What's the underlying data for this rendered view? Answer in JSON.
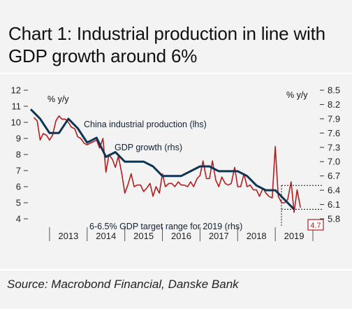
{
  "title": "Chart 1: Industrial production in line with GDP growth around 6%",
  "source": "Source: Macrobond Financial, Danske Bank",
  "chart_data": {
    "type": "line",
    "y_left": {
      "label": "% y/y",
      "ticks": [
        "12",
        "11",
        "10",
        "9",
        "8",
        "7",
        "6",
        "5",
        "4"
      ],
      "range": [
        4,
        12
      ]
    },
    "y_right": {
      "label": "% y/y",
      "ticks": [
        "8.5",
        "8.2",
        "7.9",
        "7.6",
        "7.3",
        "7.0",
        "6.7",
        "6.4",
        "6.1",
        "5.8"
      ],
      "range": [
        5.8,
        8.5
      ]
    },
    "x_ticks": [
      "2013",
      "2014",
      "2015",
      "2016",
      "2017",
      "2018",
      "2019"
    ],
    "x_range": [
      2012.5,
      2020.0
    ],
    "annotations": {
      "ip_label": "China industrial production (lhs)",
      "gdp_label": "GDP growth (rhs)",
      "target_label": "6-6.5% GDP target range for 2019 (rhs)",
      "last_value": "4.7"
    },
    "target_range_rhs": [
      6.0,
      6.5
    ],
    "colors": {
      "industrial_production": "#b71c1c",
      "gdp": "#0f3554",
      "last_value_box": "#b71c1c"
    },
    "series": [
      {
        "name": "China industrial production (lhs)",
        "axis": "left",
        "points": [
          [
            2012.58,
            10.3
          ],
          [
            2012.67,
            10.1
          ],
          [
            2012.75,
            8.9
          ],
          [
            2012.83,
            9.3
          ],
          [
            2012.92,
            9.2
          ],
          [
            2013.0,
            8.9
          ],
          [
            2013.08,
            9.2
          ],
          [
            2013.17,
            10.1
          ],
          [
            2013.25,
            10.4
          ],
          [
            2013.33,
            10.2
          ],
          [
            2013.42,
            10.2
          ],
          [
            2013.5,
            10.0
          ],
          [
            2013.58,
            9.7
          ],
          [
            2013.67,
            9.6
          ],
          [
            2013.75,
            9.1
          ],
          [
            2013.83,
            9.0
          ],
          [
            2013.92,
            8.7
          ],
          [
            2014.0,
            8.6
          ],
          [
            2014.08,
            8.7
          ],
          [
            2014.17,
            8.8
          ],
          [
            2014.25,
            8.9
          ],
          [
            2014.33,
            8.4
          ],
          [
            2014.42,
            9.0
          ],
          [
            2014.5,
            6.9
          ],
          [
            2014.58,
            8.0
          ],
          [
            2014.67,
            7.7
          ],
          [
            2014.75,
            7.2
          ],
          [
            2014.83,
            7.9
          ],
          [
            2014.92,
            6.8
          ],
          [
            2015.0,
            5.6
          ],
          [
            2015.08,
            6.1
          ],
          [
            2015.17,
            6.8
          ],
          [
            2015.25,
            6.0
          ],
          [
            2015.33,
            6.1
          ],
          [
            2015.42,
            6.1
          ],
          [
            2015.5,
            5.7
          ],
          [
            2015.58,
            5.9
          ],
          [
            2015.67,
            6.2
          ],
          [
            2015.75,
            5.4
          ],
          [
            2015.83,
            6.0
          ],
          [
            2015.92,
            5.6
          ],
          [
            2016.0,
            6.8
          ],
          [
            2016.08,
            6.0
          ],
          [
            2016.17,
            6.2
          ],
          [
            2016.25,
            6.2
          ],
          [
            2016.33,
            6.0
          ],
          [
            2016.42,
            6.3
          ],
          [
            2016.5,
            6.1
          ],
          [
            2016.58,
            6.1
          ],
          [
            2016.67,
            6.0
          ],
          [
            2016.75,
            6.3
          ],
          [
            2016.83,
            6.0
          ],
          [
            2016.92,
            6.5
          ],
          [
            2017.0,
            6.7
          ],
          [
            2017.08,
            7.6
          ],
          [
            2017.17,
            6.5
          ],
          [
            2017.25,
            6.5
          ],
          [
            2017.33,
            7.6
          ],
          [
            2017.42,
            6.4
          ],
          [
            2017.5,
            6.0
          ],
          [
            2017.58,
            6.6
          ],
          [
            2017.67,
            6.2
          ],
          [
            2017.75,
            6.1
          ],
          [
            2017.83,
            6.2
          ],
          [
            2017.92,
            7.2
          ],
          [
            2018.0,
            6.0
          ],
          [
            2018.08,
            6.0
          ],
          [
            2018.17,
            6.8
          ],
          [
            2018.25,
            6.0
          ],
          [
            2018.33,
            6.1
          ],
          [
            2018.42,
            5.8
          ],
          [
            2018.5,
            5.8
          ],
          [
            2018.58,
            5.4
          ],
          [
            2018.67,
            5.9
          ],
          [
            2018.75,
            5.6
          ],
          [
            2018.83,
            5.4
          ],
          [
            2018.92,
            5.3
          ],
          [
            2019.0,
            8.5
          ],
          [
            2019.08,
            5.4
          ],
          [
            2019.17,
            5.0
          ],
          [
            2019.25,
            5.0
          ],
          [
            2019.33,
            5.2
          ],
          [
            2019.42,
            6.3
          ],
          [
            2019.5,
            4.4
          ],
          [
            2019.58,
            5.8
          ],
          [
            2019.67,
            4.7
          ]
        ]
      },
      {
        "name": "GDP growth (rhs)",
        "axis": "right",
        "points": [
          [
            2012.5,
            8.1
          ],
          [
            2012.75,
            7.9
          ],
          [
            2013.0,
            7.6
          ],
          [
            2013.25,
            7.6
          ],
          [
            2013.5,
            7.9
          ],
          [
            2013.75,
            7.7
          ],
          [
            2014.0,
            7.4
          ],
          [
            2014.25,
            7.5
          ],
          [
            2014.5,
            7.1
          ],
          [
            2014.75,
            7.2
          ],
          [
            2015.0,
            7.0
          ],
          [
            2015.25,
            7.0
          ],
          [
            2015.5,
            7.0
          ],
          [
            2015.75,
            6.9
          ],
          [
            2016.0,
            6.7
          ],
          [
            2016.25,
            6.7
          ],
          [
            2016.5,
            6.7
          ],
          [
            2016.75,
            6.8
          ],
          [
            2017.0,
            6.9
          ],
          [
            2017.25,
            6.9
          ],
          [
            2017.5,
            6.8
          ],
          [
            2017.75,
            6.8
          ],
          [
            2018.0,
            6.8
          ],
          [
            2018.25,
            6.7
          ],
          [
            2018.5,
            6.5
          ],
          [
            2018.75,
            6.4
          ],
          [
            2019.0,
            6.4
          ],
          [
            2019.25,
            6.2
          ],
          [
            2019.5,
            6.0
          ]
        ]
      }
    ]
  }
}
